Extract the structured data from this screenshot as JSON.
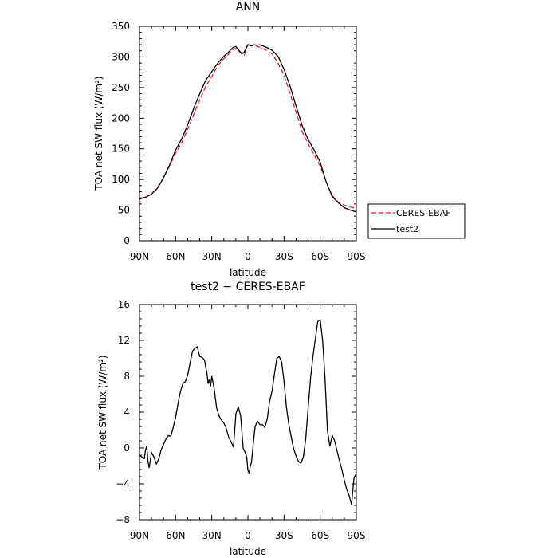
{
  "chart_data": [
    {
      "type": "line",
      "title": "ANN",
      "xlabel": "latitude",
      "ylabel": "TOA net SW flux (W/m²)",
      "xlim": [
        90,
        -90
      ],
      "ylim": [
        0,
        350
      ],
      "xticks": [
        90,
        60,
        30,
        0,
        -30,
        -60,
        -90
      ],
      "xtick_labels": [
        "90N",
        "60N",
        "30N",
        "0",
        "30S",
        "60S",
        "90S"
      ],
      "yticks": [
        0,
        50,
        100,
        150,
        200,
        250,
        300,
        350
      ],
      "ytick_labels": [
        "0",
        "50",
        "100",
        "150",
        "200",
        "250",
        "300",
        "350"
      ],
      "grid": false,
      "legend": "right, outside plot",
      "series": [
        {
          "name": "CERES-EBAF",
          "color": "#e8141b",
          "dash": "dashed",
          "x": [
            90,
            85,
            80,
            75,
            70,
            65,
            60,
            55,
            50,
            45,
            40,
            35,
            30,
            25,
            20,
            17,
            15,
            12,
            10,
            8,
            5,
            3,
            0,
            -3,
            -5,
            -8,
            -10,
            -15,
            -20,
            -25,
            -30,
            -35,
            -40,
            -45,
            -50,
            -55,
            -60,
            -65,
            -70,
            -75,
            -80,
            -85,
            -90
          ],
          "y": [
            69,
            71,
            77,
            87,
            103,
            122,
            143,
            160,
            182,
            206,
            230,
            252,
            268,
            286,
            297,
            302,
            307,
            313,
            314,
            310,
            305,
            303,
            322,
            318,
            319,
            317,
            316,
            311,
            305,
            290,
            270,
            240,
            210,
            178,
            158,
            140,
            122,
            96,
            74,
            63,
            58,
            55,
            53
          ]
        },
        {
          "name": "test2",
          "color": "#000000",
          "dash": "solid",
          "x": [
            90,
            85,
            80,
            75,
            70,
            65,
            60,
            55,
            50,
            45,
            40,
            35,
            30,
            25,
            20,
            17,
            15,
            12,
            10,
            8,
            5,
            3,
            0,
            -3,
            -5,
            -8,
            -10,
            -15,
            -20,
            -25,
            -30,
            -35,
            -40,
            -45,
            -50,
            -55,
            -60,
            -65,
            -70,
            -75,
            -80,
            -85,
            -90
          ],
          "y": [
            68,
            71,
            76,
            86,
            103,
            124,
            148,
            166,
            189,
            216,
            240,
            262,
            276,
            290,
            301,
            306,
            310,
            316,
            317,
            312,
            305,
            308,
            320,
            318,
            320,
            319,
            320,
            316,
            311,
            301,
            280,
            252,
            220,
            188,
            165,
            148,
            128,
            96,
            72,
            62,
            54,
            50,
            47
          ]
        }
      ]
    },
    {
      "type": "line",
      "title": "test2 − CERES-EBAF",
      "xlabel": "latitude",
      "ylabel": "TOA net SW flux (W/m²)",
      "xlim": [
        90,
        -90
      ],
      "ylim": [
        -8,
        16
      ],
      "xticks": [
        90,
        60,
        30,
        0,
        -30,
        -60,
        -90
      ],
      "xtick_labels": [
        "90N",
        "60N",
        "30N",
        "0",
        "30S",
        "60S",
        "90S"
      ],
      "yticks": [
        -8,
        -4,
        0,
        4,
        8,
        12,
        16
      ],
      "ytick_labels": [
        "−8",
        "−4",
        "0",
        "4",
        "8",
        "12",
        "16"
      ],
      "grid": false,
      "series": [
        {
          "color": "#000000",
          "dash": "solid",
          "x": [
            90,
            88,
            86,
            85,
            84,
            83,
            82,
            80,
            78,
            76,
            74,
            72,
            70,
            68,
            66,
            64,
            62,
            60,
            58,
            56,
            54,
            52,
            50,
            48,
            46,
            44,
            42,
            40,
            38,
            36,
            35,
            34,
            33,
            32,
            31,
            30,
            28,
            26,
            24,
            22,
            20,
            18,
            16,
            14,
            12,
            10,
            8,
            6,
            4,
            2,
            1,
            0,
            -1,
            -2,
            -3,
            -4,
            -5,
            -6,
            -8,
            -10,
            -12,
            -14,
            -16,
            -18,
            -20,
            -22,
            -24,
            -26,
            -28,
            -30,
            -32,
            -34,
            -36,
            -38,
            -40,
            -42,
            -44,
            -46,
            -48,
            -50,
            -52,
            -54,
            -56,
            -58,
            -60,
            -62,
            -63,
            -64,
            -65,
            -66,
            -68,
            -70,
            -72,
            -74,
            -76,
            -78,
            -80,
            -82,
            -84,
            -86,
            -88,
            -90
          ],
          "y": [
            -0.8,
            -1.0,
            -1.2,
            -0.2,
            0.2,
            -1.5,
            -2.2,
            -0.5,
            -1.0,
            -1.8,
            -1.2,
            -0.2,
            0.4,
            1.0,
            1.4,
            1.3,
            2.3,
            3.4,
            5.0,
            6.3,
            7.2,
            7.4,
            8.1,
            9.5,
            10.8,
            11.1,
            11.3,
            10.2,
            10.1,
            9.8,
            9.0,
            8.4,
            7.2,
            7.6,
            6.9,
            8.0,
            6.6,
            4.5,
            3.6,
            3.1,
            2.8,
            2.2,
            1.2,
            0.7,
            0.1,
            3.8,
            4.6,
            3.6,
            0.0,
            -0.6,
            -1.0,
            -2.5,
            -2.8,
            -2.0,
            -1.6,
            -0.2,
            1.2,
            2.4,
            3.0,
            2.6,
            2.6,
            2.3,
            3.2,
            5.2,
            6.3,
            8.2,
            10.0,
            10.2,
            9.6,
            7.4,
            4.5,
            2.6,
            1.2,
            -0.1,
            -0.9,
            -1.5,
            -1.7,
            -1.0,
            1.0,
            4.5,
            7.8,
            10.2,
            12.2,
            14.1,
            14.3,
            12.0,
            10.0,
            7.8,
            5.0,
            2.0,
            0.2,
            1.4,
            0.8,
            -0.3,
            -1.4,
            -2.4,
            -3.6,
            -4.6,
            -5.3,
            -6.3,
            -3.4,
            -2.8
          ]
        }
      ]
    }
  ]
}
